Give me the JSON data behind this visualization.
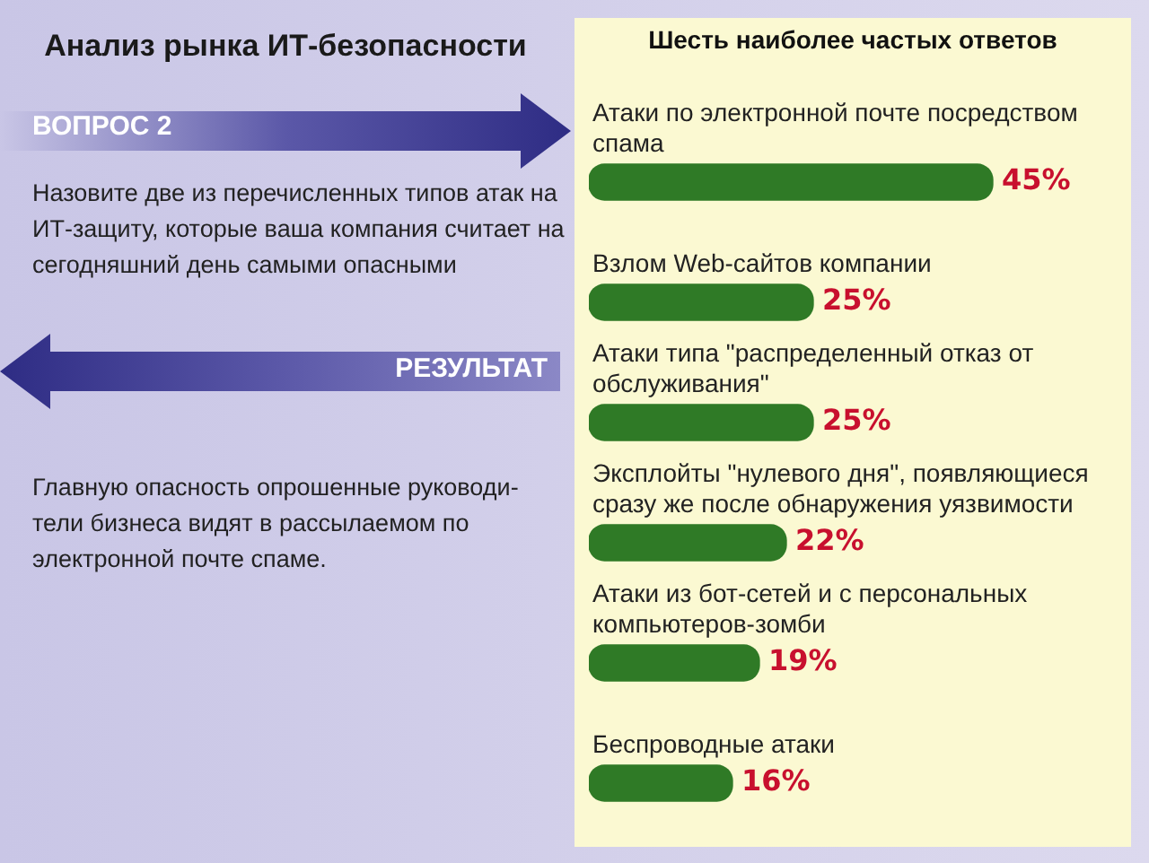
{
  "chart_data": {
    "type": "bar",
    "orientation": "horizontal",
    "title": "Анализ рынка ИТ-безопасности",
    "subtitle": "Шесть наиболее частых ответов",
    "categories": [
      "Атаки по электронной почте посредством спама",
      "Взлом Web-сайтов компании",
      "Атаки типа \"распределенный отказ от обслуживания\"",
      "Эксплойты \"нулевого дня\", появляющиеся сразу же после обнаружения уязвимости",
      "Атаки из бот-сетей и с персональных компьютеров-зомби",
      "Беспроводные атаки"
    ],
    "values": [
      45,
      25,
      25,
      22,
      19,
      16
    ],
    "value_labels": [
      "45%",
      "25%",
      "25%",
      "22%",
      "19%",
      "16%"
    ],
    "color": "#2f7a26",
    "annotations": [
      "ВОПРОС 2",
      "Назовите две из перечисленных типов атак на ИТ-защиту, которые ваша компания считает на сегодняшний день самыми опасными",
      "РЕЗУЛЬТАТ",
      "Главную опасность опрошенные руководи-тели бизнеса видят в рассылаемом по электронной почте спаме."
    ]
  }
}
